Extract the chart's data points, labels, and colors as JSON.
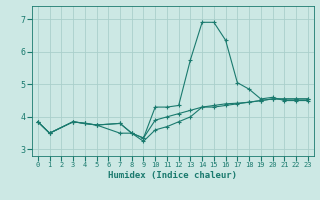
{
  "xlabel": "Humidex (Indice chaleur)",
  "bg_color": "#cce8e4",
  "grid_color": "#aacfcb",
  "line_color": "#1a7a6e",
  "ylim": [
    2.8,
    7.4
  ],
  "yticks": [
    3,
    4,
    5,
    6,
    7
  ],
  "xlim": [
    -0.5,
    23.5
  ],
  "xticks": [
    0,
    1,
    2,
    3,
    4,
    5,
    6,
    7,
    8,
    9,
    10,
    11,
    12,
    13,
    14,
    15,
    16,
    17,
    18,
    19,
    20,
    21,
    22,
    23
  ],
  "line1_x": [
    0,
    1,
    3,
    4,
    5,
    7,
    8,
    9,
    10,
    11,
    12,
    13,
    14,
    15,
    16,
    17,
    18,
    19,
    20,
    21,
    22,
    23
  ],
  "line1_y": [
    3.85,
    3.5,
    3.85,
    3.8,
    3.75,
    3.5,
    3.5,
    3.25,
    3.6,
    3.7,
    3.85,
    4.0,
    4.3,
    4.3,
    4.35,
    4.4,
    4.45,
    4.5,
    4.55,
    4.55,
    4.55,
    4.55
  ],
  "line2_x": [
    0,
    1,
    3,
    4,
    5,
    7,
    8,
    9,
    10,
    11,
    12,
    13,
    14,
    15,
    16,
    17,
    18,
    19,
    20,
    21,
    22,
    23
  ],
  "line2_y": [
    3.85,
    3.5,
    3.85,
    3.8,
    3.75,
    3.8,
    3.5,
    3.35,
    3.9,
    4.0,
    4.1,
    4.2,
    4.3,
    4.35,
    4.4,
    4.42,
    4.45,
    4.5,
    4.55,
    4.55,
    4.55,
    4.55
  ],
  "line3_x": [
    0,
    1,
    3,
    4,
    5,
    7,
    8,
    9,
    10,
    11,
    12,
    13,
    14,
    15,
    16,
    17,
    18,
    19,
    20,
    21,
    22,
    23
  ],
  "line3_y": [
    3.85,
    3.5,
    3.85,
    3.8,
    3.75,
    3.8,
    3.5,
    3.35,
    4.3,
    4.3,
    4.35,
    5.75,
    6.9,
    6.9,
    6.35,
    5.05,
    4.85,
    4.55,
    4.6,
    4.5,
    4.5,
    4.5
  ]
}
